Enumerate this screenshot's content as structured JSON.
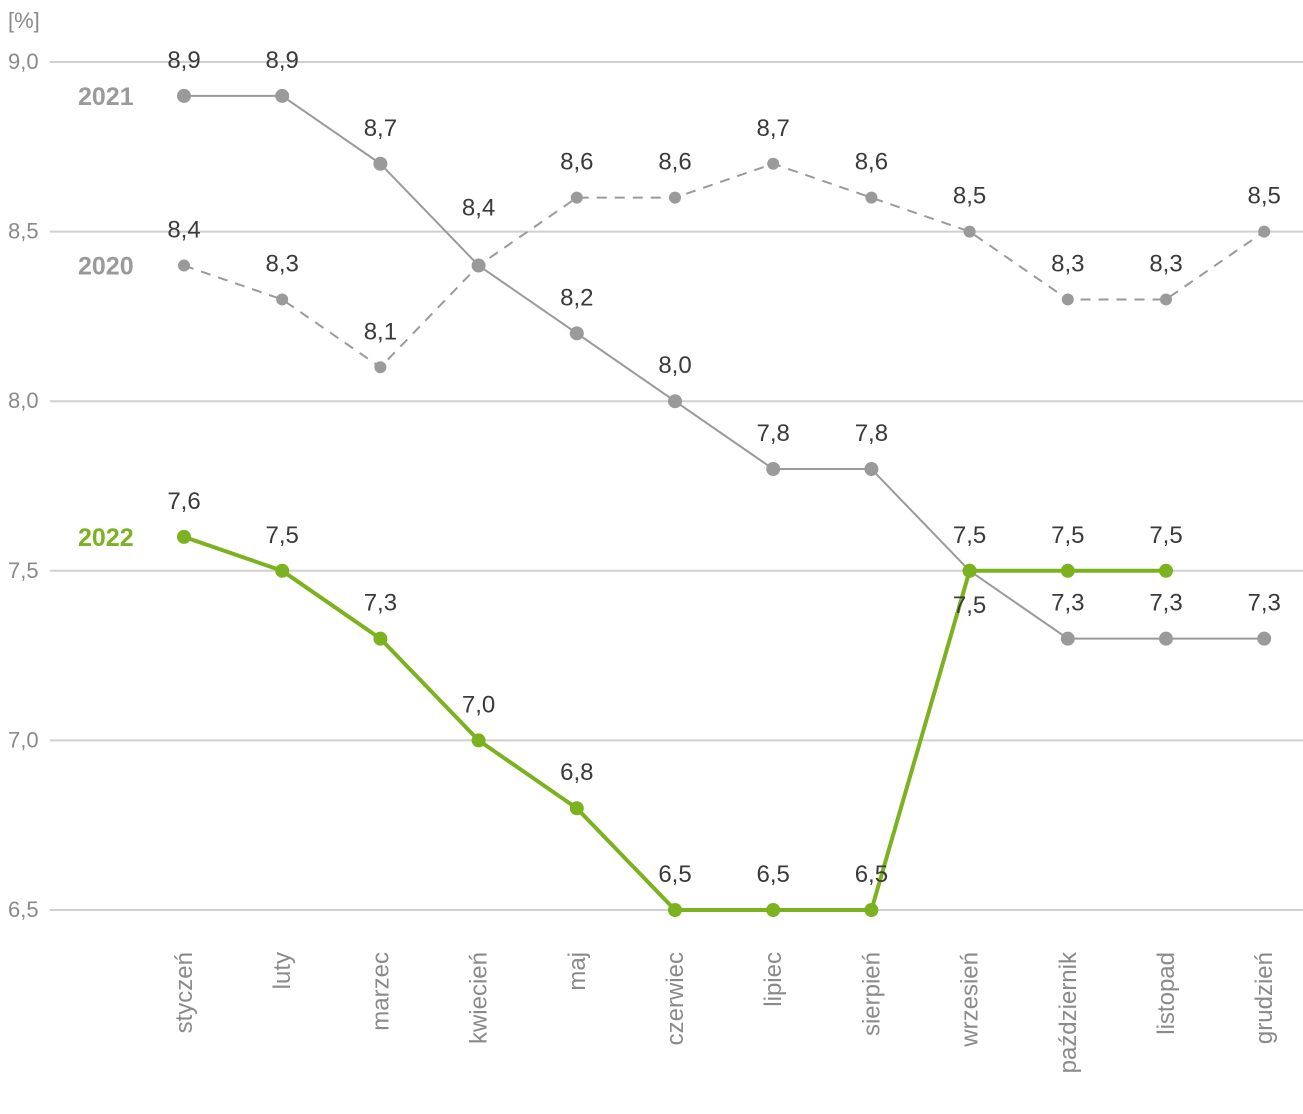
{
  "chart_data": {
    "type": "line",
    "unit_label": "[%]",
    "categories": [
      "styczeń",
      "luty",
      "marzec",
      "kwiecień",
      "maj",
      "czerwiec",
      "lipiec",
      "sierpień",
      "wrzesień",
      "październik",
      "listopad",
      "grudzień"
    ],
    "y_ticks": [
      "6,5",
      "7,0",
      "7,5",
      "8,0",
      "8,5",
      "9,0"
    ],
    "ylim": [
      6.5,
      9.0
    ],
    "grid": true,
    "series": [
      {
        "name": "2020",
        "color": "#9a9a9a",
        "style": "dashed",
        "values": [
          8.4,
          8.3,
          8.1,
          8.4,
          8.6,
          8.6,
          8.7,
          8.6,
          8.5,
          8.3,
          8.3,
          8.5
        ],
        "labels": [
          "8,4",
          "8,3",
          "8,1",
          "8,4",
          "8,6",
          "8,6",
          "8,7",
          "8,6",
          "8,5",
          "8,3",
          "8,3",
          "8,5"
        ]
      },
      {
        "name": "2021",
        "color": "#9a9a9a",
        "style": "solid",
        "values": [
          8.9,
          8.9,
          8.7,
          8.4,
          8.2,
          8.0,
          7.8,
          7.8,
          7.5,
          7.3,
          7.3,
          7.3
        ],
        "labels": [
          "8,9",
          "8,9",
          "8,7",
          "",
          "8,2",
          "8,0",
          "7,8",
          "7,8",
          "7,5",
          "7,3",
          "7,3",
          "7,3"
        ]
      },
      {
        "name": "2022",
        "color": "#7cb220",
        "style": "solid",
        "values": [
          7.6,
          7.5,
          7.3,
          7.0,
          6.8,
          6.5,
          6.5,
          6.5,
          7.5,
          7.5,
          7.5,
          null
        ],
        "labels": [
          "7,6",
          "7,5",
          "7,3",
          "7,0",
          "6,8",
          "6,5",
          "6,5",
          "6,5",
          "7,5",
          "7,5",
          "7,5",
          ""
        ]
      }
    ]
  }
}
